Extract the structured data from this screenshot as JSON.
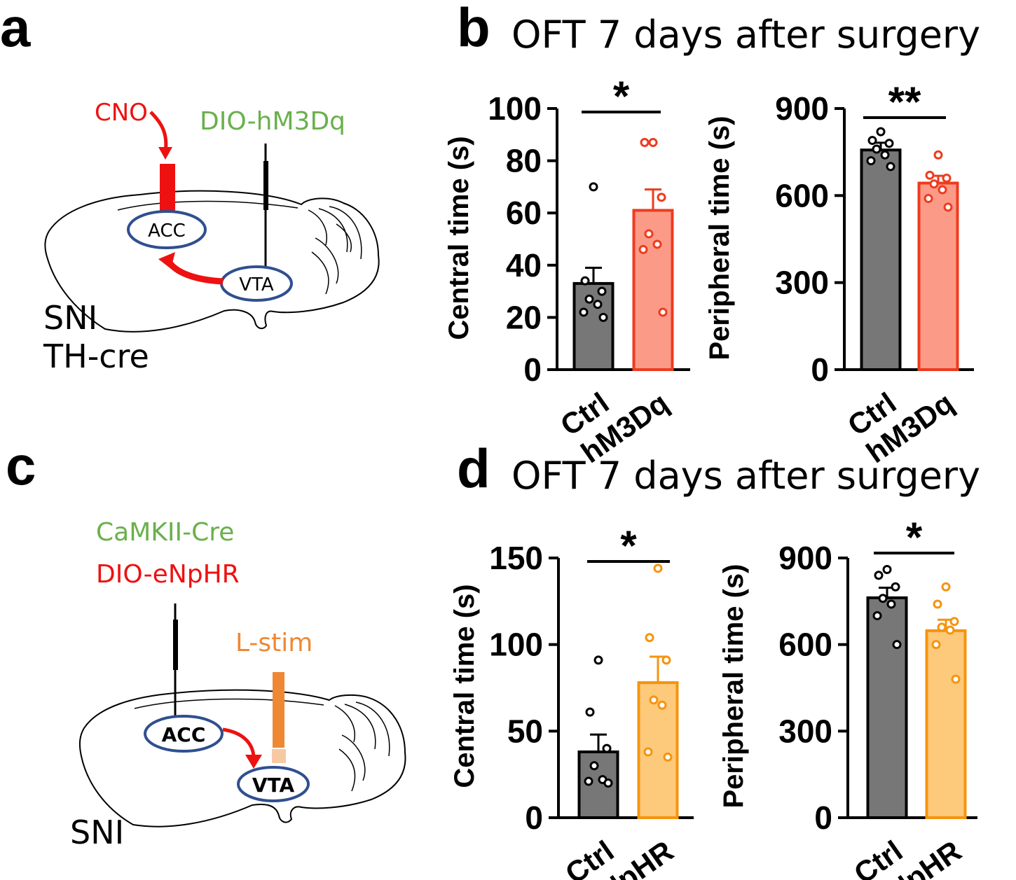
{
  "figure": {
    "panel_a": {
      "letter": "a",
      "labels": {
        "injection": "CNO",
        "virus": "DIO-hM3Dq",
        "region_acc": "ACC",
        "region_vta": "VTA",
        "model_line1": "SNI",
        "model_line2": "TH-cre"
      }
    },
    "panel_b": {
      "letter": "b",
      "title": "OFT 7 days after surgery"
    },
    "panel_c": {
      "letter": "c",
      "labels": {
        "virus1": "CaMKII-Cre",
        "virus2": "DIO-eNpHR",
        "stim": "L-stim",
        "region_acc": "ACC",
        "region_vta": "VTA",
        "model": "SNI"
      }
    },
    "panel_d": {
      "letter": "d",
      "title": "OFT 7 days after surgery"
    }
  },
  "colors": {
    "ctrl_fill": "#777777",
    "hm3dq_fill": "#fc9a88",
    "hm3dq_edge": "#ee3b1e",
    "nphr_fill": "#fdc97a",
    "nphr_edge": "#f5940f",
    "diagram_red": "#ee1111",
    "diagram_green": "#6ab04c",
    "diagram_orange": "#ee8833",
    "ellipse_blue": "#2f4f8f"
  },
  "chart_data": [
    {
      "id": "b1",
      "type": "bar",
      "categories": [
        "Ctrl",
        "hM3Dq"
      ],
      "values": [
        33,
        61
      ],
      "sem": [
        6,
        8
      ],
      "points": [
        [
          70,
          34,
          30,
          27,
          25,
          22,
          20
        ],
        [
          87,
          87,
          66,
          52,
          48,
          46,
          22
        ]
      ],
      "ylabel": "Central time (s)",
      "ylim": [
        0,
        100
      ],
      "yticks": [
        0,
        20,
        40,
        60,
        80,
        100
      ],
      "significance": "*",
      "palette": "hm3dq"
    },
    {
      "id": "b2",
      "type": "bar",
      "categories": [
        "Ctrl",
        "hM3Dq"
      ],
      "values": [
        757,
        643
      ],
      "sem": [
        25,
        25
      ],
      "points": [
        [
          820,
          790,
          780,
          760,
          740,
          720,
          700
        ],
        [
          740,
          670,
          660,
          640,
          620,
          590,
          560
        ]
      ],
      "ylabel": "Peripheral time (s)",
      "ylim": [
        0,
        900
      ],
      "yticks": [
        0,
        300,
        600,
        900
      ],
      "significance": "**",
      "palette": "hm3dq"
    },
    {
      "id": "d1",
      "type": "bar",
      "categories": [
        "Ctrl",
        "NpHR"
      ],
      "values": [
        38,
        78
      ],
      "sem": [
        10,
        15
      ],
      "points": [
        [
          91,
          61,
          40,
          30,
          22,
          21,
          20
        ],
        [
          144,
          104,
          91,
          68,
          65,
          38,
          35
        ]
      ],
      "ylabel": "Central time (s)",
      "ylim": [
        0,
        150
      ],
      "yticks": [
        0,
        50,
        100,
        150
      ],
      "significance": "*",
      "palette": "nphr"
    },
    {
      "id": "d2",
      "type": "bar",
      "categories": [
        "Ctrl",
        "NpHR"
      ],
      "values": [
        762,
        648
      ],
      "sem": [
        35,
        38
      ],
      "points": [
        [
          860,
          840,
          800,
          760,
          740,
          700,
          600
        ],
        [
          800,
          740,
          680,
          660,
          650,
          600,
          480
        ]
      ],
      "ylabel": "Peripheral time (s)",
      "ylim": [
        0,
        900
      ],
      "yticks": [
        0,
        300,
        600,
        900
      ],
      "significance": "*",
      "palette": "nphr"
    }
  ]
}
